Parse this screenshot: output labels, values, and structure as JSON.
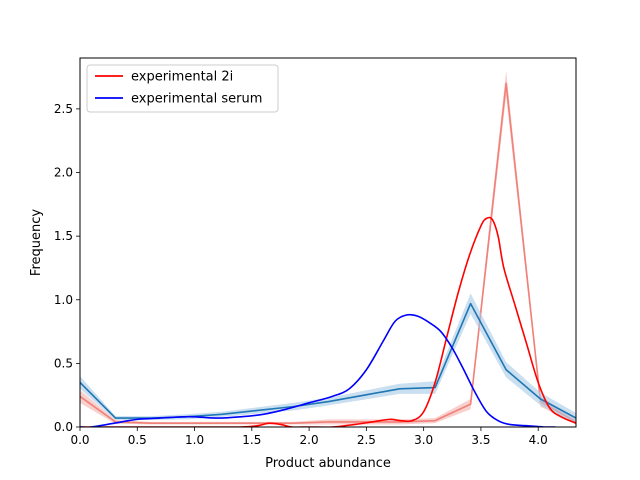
{
  "chart_data": {
    "type": "line",
    "title": "",
    "xlabel": "Product abundance",
    "ylabel": "Frequency",
    "xlim": [
      0.0,
      4.33
    ],
    "ylim": [
      0.0,
      2.9
    ],
    "x_ticks": [
      "0.0",
      "0.5",
      "1.0",
      "1.5",
      "2.0",
      "2.5",
      "3.0",
      "3.5",
      "4.0"
    ],
    "y_ticks": [
      "0.0",
      "0.5",
      "1.0",
      "1.5",
      "2.0",
      "2.5"
    ],
    "legend_position": "top-left",
    "grid": false,
    "legend": [
      {
        "label": "experimental 2i",
        "color": "#ff0000"
      },
      {
        "label": "experimental serum",
        "color": "#0000ff"
      }
    ],
    "series": [
      {
        "name": "experimental 2i",
        "kind": "kde",
        "color": "#ff0000",
        "x": [
          0.0,
          0.3,
          0.6,
          0.9,
          1.2,
          1.4,
          1.55,
          1.65,
          1.75,
          1.85,
          2.0,
          2.2,
          2.4,
          2.55,
          2.7,
          2.8,
          2.9,
          3.0,
          3.1,
          3.2,
          3.3,
          3.4,
          3.5,
          3.55,
          3.6,
          3.65,
          3.7,
          3.8,
          3.9,
          4.0,
          4.1,
          4.2,
          4.33
        ],
        "y": [
          0.0,
          0.0,
          0.0,
          0.0,
          0.0,
          0.0,
          0.01,
          0.03,
          0.02,
          0.0,
          0.0,
          0.0,
          0.02,
          0.04,
          0.06,
          0.05,
          0.05,
          0.12,
          0.35,
          0.7,
          1.05,
          1.35,
          1.58,
          1.64,
          1.63,
          1.5,
          1.25,
          0.95,
          0.65,
          0.35,
          0.15,
          0.08,
          0.03
        ]
      },
      {
        "name": "experimental serum",
        "kind": "kde",
        "color": "#0000ff",
        "x": [
          0.0,
          0.1,
          0.3,
          0.5,
          0.7,
          0.9,
          1.0,
          1.2,
          1.4,
          1.6,
          1.8,
          2.0,
          2.2,
          2.35,
          2.5,
          2.65,
          2.75,
          2.85,
          2.95,
          3.05,
          3.15,
          3.25,
          3.35,
          3.45,
          3.55,
          3.65,
          3.75,
          3.9,
          4.05,
          4.15
        ],
        "y": [
          0.0,
          0.0,
          0.03,
          0.06,
          0.07,
          0.08,
          0.08,
          0.07,
          0.08,
          0.1,
          0.14,
          0.19,
          0.24,
          0.3,
          0.45,
          0.68,
          0.83,
          0.88,
          0.87,
          0.82,
          0.75,
          0.62,
          0.45,
          0.27,
          0.12,
          0.05,
          0.02,
          0.01,
          0.0,
          0.0
        ]
      },
      {
        "name": "",
        "kind": "histogram-line",
        "color": "#f08078",
        "band_color": "#f4b0ac",
        "x": [
          0.0,
          0.31,
          0.62,
          0.93,
          1.24,
          1.55,
          1.86,
          2.17,
          2.48,
          2.79,
          3.1,
          3.41,
          3.72,
          4.02,
          4.33
        ],
        "y": [
          0.24,
          0.04,
          0.03,
          0.03,
          0.03,
          0.03,
          0.03,
          0.04,
          0.04,
          0.04,
          0.05,
          0.18,
          2.7,
          0.2,
          0.04
        ],
        "band": [
          0.05,
          0.015,
          0.01,
          0.01,
          0.01,
          0.01,
          0.01,
          0.02,
          0.02,
          0.02,
          0.02,
          0.04,
          0.1,
          0.04,
          0.02
        ]
      },
      {
        "name": "",
        "kind": "histogram-line",
        "color": "#1f77b4",
        "band_color": "#a6c9e6",
        "x": [
          0.0,
          0.31,
          0.62,
          0.93,
          1.24,
          1.55,
          1.86,
          2.17,
          2.48,
          2.79,
          3.1,
          3.41,
          3.72,
          4.02,
          4.33
        ],
        "y": [
          0.35,
          0.07,
          0.07,
          0.08,
          0.1,
          0.13,
          0.16,
          0.2,
          0.25,
          0.3,
          0.31,
          0.97,
          0.45,
          0.22,
          0.07
        ],
        "band": [
          0.05,
          0.015,
          0.015,
          0.02,
          0.02,
          0.025,
          0.03,
          0.03,
          0.035,
          0.04,
          0.05,
          0.08,
          0.06,
          0.05,
          0.04
        ]
      }
    ]
  }
}
